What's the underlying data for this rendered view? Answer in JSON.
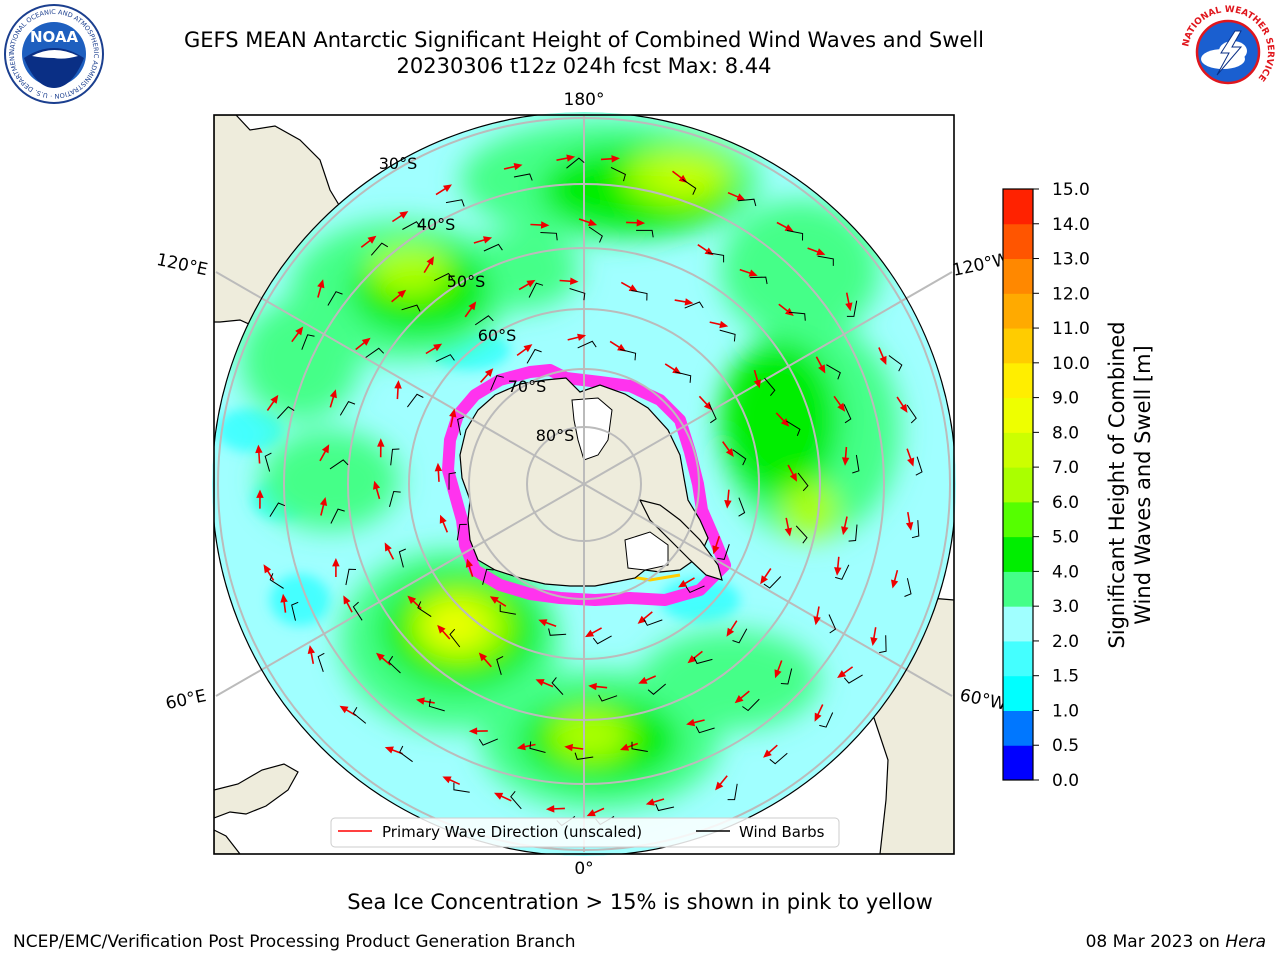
{
  "header": {
    "title_line1": "GEFS MEAN Antarctic Significant Height of Combined Wind Waves and Swell",
    "title_line2": "20230306 t12z 024h fcst   Max: 8.44",
    "left_logo": "NOAA",
    "left_logo_ring_text": "NATIONAL OCEANIC AND ATMOSPHERIC ADMINISTRATION · U.S. DEPARTMENT OF COMMERCE",
    "right_logo_ring_text": "NATIONAL WEATHER SERVICE"
  },
  "map": {
    "projection": "south-polar-stereographic",
    "longitude_labels": {
      "top": "180°",
      "bottom": "0°",
      "upper_left": "120°E",
      "lower_left": "60°E",
      "upper_right": "120°W",
      "lower_right": "60°W"
    },
    "latitude_labels": [
      "30°S",
      "40°S",
      "50°S",
      "60°S",
      "70°S",
      "80°S"
    ],
    "max_value": 8.44,
    "colors": {
      "land": "#eeecdc",
      "ocean_low": "#a0ffff",
      "ice": "#ff33ee",
      "arrow": "#ee0000",
      "barb": "#000000"
    }
  },
  "legend": {
    "items": [
      {
        "label": "Primary Wave Direction (unscaled)",
        "color": "#ff0000"
      },
      {
        "label": "Wind Barbs",
        "color": "#000000"
      }
    ]
  },
  "colorbar": {
    "label_line1": "Significant Height of Combined",
    "label_line2": "Wind Waves and Swell [m]",
    "ticks": [
      "0.0",
      "0.5",
      "1.0",
      "1.5",
      "2.0",
      "3.0",
      "4.0",
      "5.0",
      "6.0",
      "7.0",
      "8.0",
      "9.0",
      "10.0",
      "11.0",
      "12.0",
      "13.0",
      "14.0",
      "15.0"
    ],
    "colors": [
      "#0000ff",
      "#0077ff",
      "#00ffff",
      "#44ffff",
      "#a0ffff",
      "#44ff88",
      "#00ee00",
      "#55ff00",
      "#aaff00",
      "#ccff00",
      "#eeff00",
      "#ffee00",
      "#ffcc00",
      "#ffaa00",
      "#ff8800",
      "#ff5500",
      "#ff2200",
      "#ff0000"
    ]
  },
  "notes": {
    "sea_ice": "Sea Ice Concentration > 15% is shown in pink to yellow"
  },
  "footer": {
    "left": "NCEP/EMC/Verification Post Processing Product Generation Branch",
    "date": "08 Mar 2023 on",
    "machine": "Hera"
  }
}
